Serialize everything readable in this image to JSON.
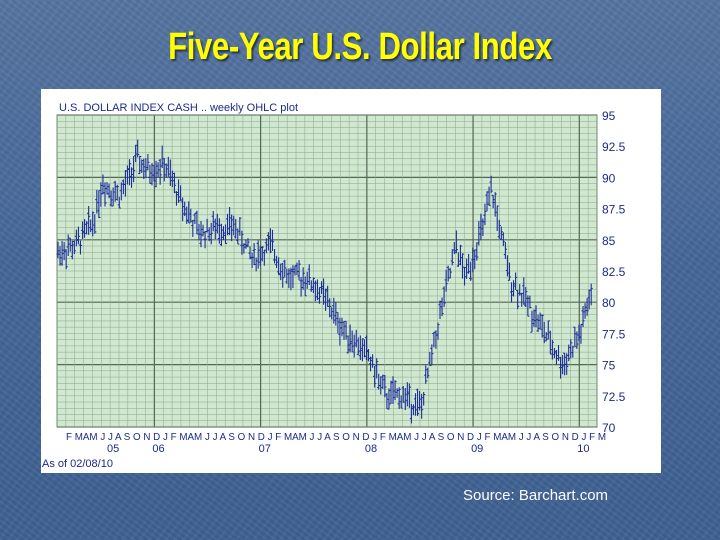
{
  "slide": {
    "title": "Five-Year U.S. Dollar Index",
    "source": "Source:  Barchart.com"
  },
  "colors": {
    "title": "#ffff00",
    "background": "#4a6c9a",
    "plot_bg": "#cfe8cf",
    "grid": "#8aa88a",
    "grid_major": "#556655",
    "bars": "#1d2d99",
    "axis_text": "#1a2a8c"
  },
  "chart_data": {
    "type": "ohlc",
    "title": "U.S. DOLLAR INDEX CASH .. weekly OHLC plot",
    "as_of": "As of 02/08/10",
    "ylim": [
      70,
      95
    ],
    "yticks": [
      "95",
      "92.5",
      "90",
      "87.5",
      "85",
      "82.5",
      "80",
      "77.5",
      "75",
      "72.5",
      "70"
    ],
    "year_labels": [
      "05",
      "06",
      "07",
      "08",
      "09",
      "10"
    ],
    "month_labels": "F MAM J J A S O N D J F MAM J J A S O N D J F MAM J J A S O N D J F MAM J J A S O N D J F MAM J J A S O N D J F M",
    "grid": true,
    "x": [
      "2005-02",
      "2005-04",
      "2005-06",
      "2005-07",
      "2005-09",
      "2005-11",
      "2005-12",
      "2006-02",
      "2006-04",
      "2006-06",
      "2006-08",
      "2006-10",
      "2006-12",
      "2007-02",
      "2007-04",
      "2007-06",
      "2007-08",
      "2007-10",
      "2007-12",
      "2008-01",
      "2008-03",
      "2008-05",
      "2008-07",
      "2008-09",
      "2008-11",
      "2008-12",
      "2009-02",
      "2009-03",
      "2009-05",
      "2009-07",
      "2009-09",
      "2009-11",
      "2010-01",
      "2010-02"
    ],
    "series": [
      {
        "values": [
          84.0,
          84.5,
          86.5,
          89.5,
          88.5,
          91.5,
          90.5,
          91.0,
          88.0,
          85.5,
          86.0,
          86.0,
          83.5,
          84.5,
          82.0,
          82.0,
          80.5,
          78.0,
          76.5,
          75.8,
          72.5,
          72.5,
          71.5,
          78.5,
          84.5,
          82.0,
          86.0,
          89.0,
          82.0,
          80.0,
          77.5,
          75.0,
          77.5,
          80.3
        ]
      }
    ]
  }
}
